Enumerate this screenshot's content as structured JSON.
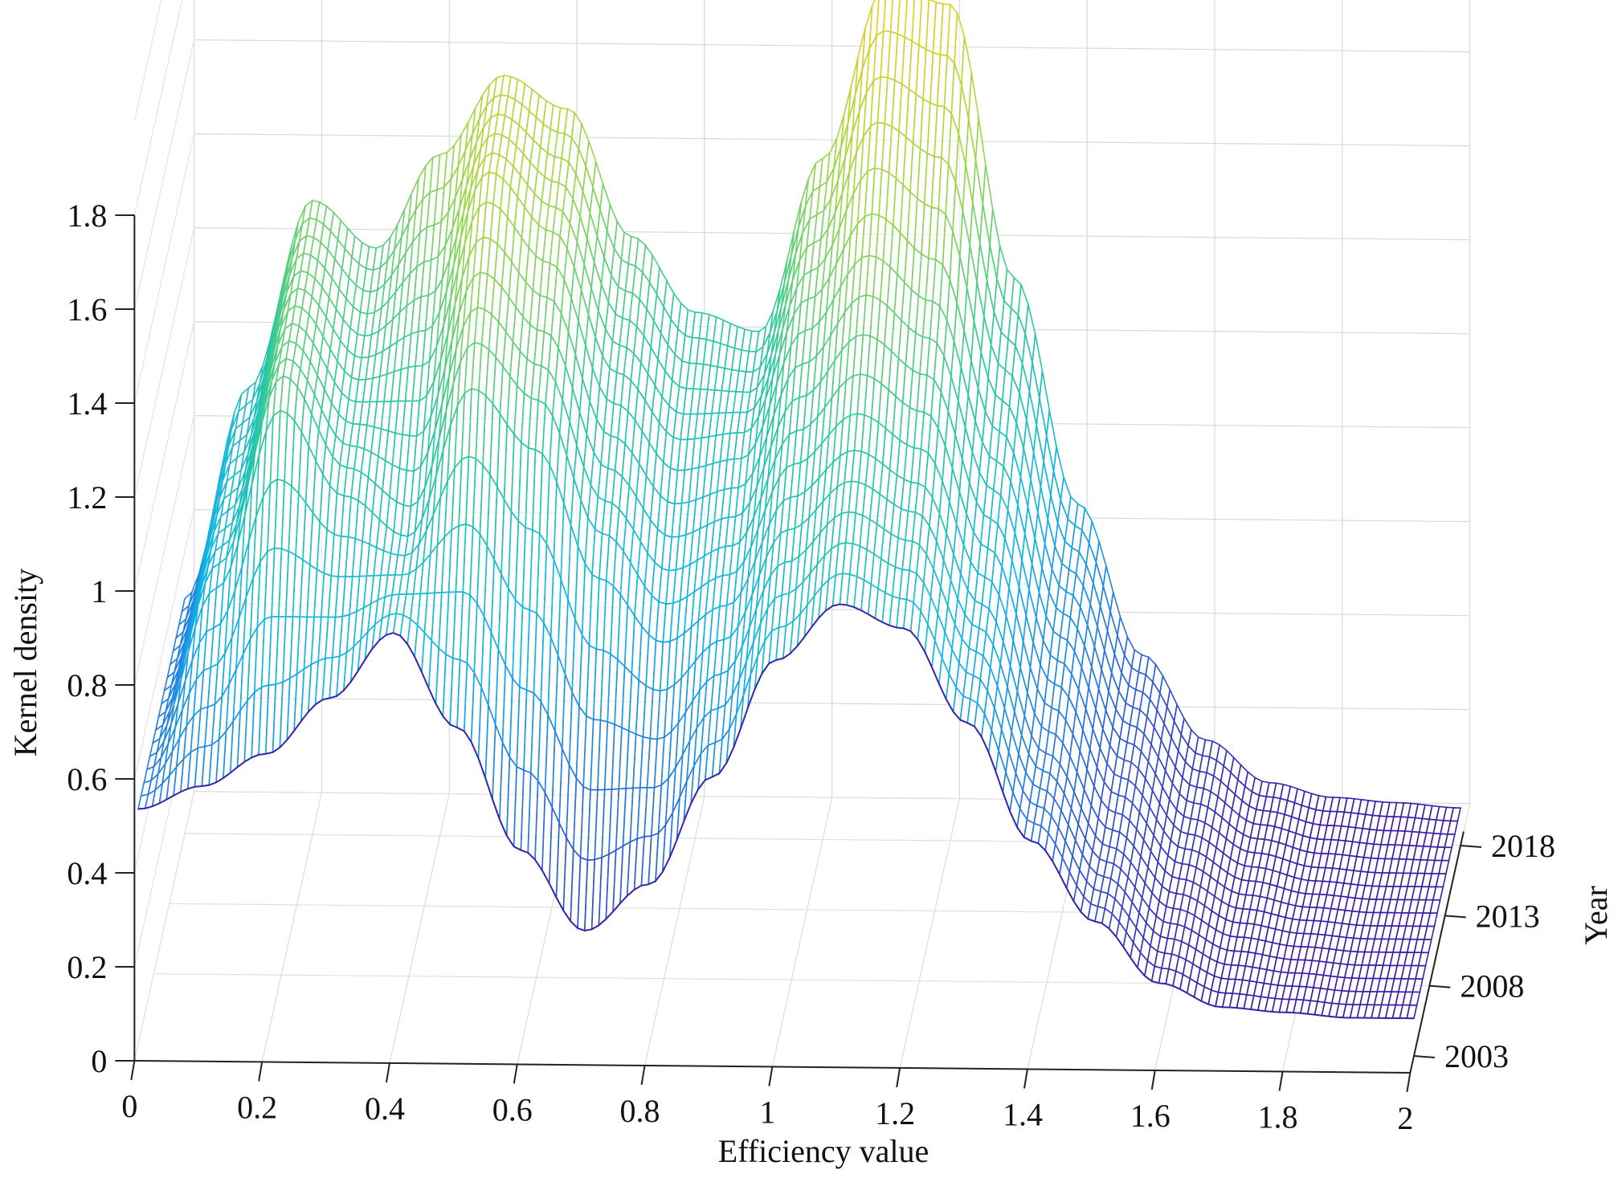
{
  "chart_data": {
    "type": "surface",
    "xlabel": "Efficiency value",
    "ylabel": "Year",
    "zlabel": "Kernel density",
    "xlim": [
      0,
      2
    ],
    "ylim": [
      2003,
      2018
    ],
    "zlim": [
      0,
      1.8
    ],
    "x_ticks": [
      {
        "value": 0,
        "label": "0"
      },
      {
        "value": 0.2,
        "label": "0.2"
      },
      {
        "value": 0.4,
        "label": "0.4"
      },
      {
        "value": 0.6,
        "label": "0.6"
      },
      {
        "value": 0.8,
        "label": "0.8"
      },
      {
        "value": 1,
        "label": "1"
      },
      {
        "value": 1.2,
        "label": "1.2"
      },
      {
        "value": 1.4,
        "label": "1.4"
      },
      {
        "value": 1.6,
        "label": "1.6"
      },
      {
        "value": 1.8,
        "label": "1.8"
      },
      {
        "value": 2,
        "label": "2"
      }
    ],
    "y_ticks": [
      {
        "value": 2003,
        "label": "2003"
      },
      {
        "value": 2008,
        "label": "2008"
      },
      {
        "value": 2013,
        "label": "2013"
      },
      {
        "value": 2018,
        "label": "2018"
      }
    ],
    "z_ticks": [
      {
        "value": 0,
        "label": "0"
      },
      {
        "value": 0.2,
        "label": "0.2"
      },
      {
        "value": 0.4,
        "label": "0.4"
      },
      {
        "value": 0.6,
        "label": "0.6"
      },
      {
        "value": 0.8,
        "label": "0.8"
      },
      {
        "value": 1,
        "label": "1"
      },
      {
        "value": 1.2,
        "label": "1.2"
      },
      {
        "value": 1.4,
        "label": "1.4"
      },
      {
        "value": 1.6,
        "label": "1.6"
      },
      {
        "value": 1.8,
        "label": "1.8"
      }
    ],
    "grid": true,
    "colormap": [
      "#3d1fa8",
      "#2a6fdf",
      "#10b5e6",
      "#2dc9a0",
      "#9ed64a",
      "#e6d020"
    ],
    "series": [
      {
        "year": 2003,
        "x": [
          0,
          0.1,
          0.2,
          0.3,
          0.4,
          0.5,
          0.6,
          0.7,
          0.8,
          0.9,
          1.0,
          1.1,
          1.2,
          1.3,
          1.4,
          1.5,
          1.6,
          1.7,
          1.8,
          1.9,
          2.0
        ],
        "density": [
          0.5,
          0.55,
          0.62,
          0.74,
          0.88,
          0.68,
          0.42,
          0.25,
          0.35,
          0.58,
          0.83,
          0.95,
          0.9,
          0.7,
          0.45,
          0.28,
          0.15,
          0.1,
          0.09,
          0.08,
          0.08
        ]
      },
      {
        "year": 2008,
        "x": [
          0,
          0.1,
          0.2,
          0.3,
          0.4,
          0.5,
          0.6,
          0.7,
          0.8,
          0.9,
          1.0,
          1.1,
          1.2,
          1.3,
          1.4,
          1.5,
          1.6,
          1.7,
          1.8,
          1.9,
          2.0
        ],
        "density": [
          0.5,
          0.85,
          1.25,
          1.05,
          0.95,
          1.3,
          1.18,
          0.9,
          0.75,
          0.82,
          1.05,
          1.15,
          1.08,
          0.82,
          0.5,
          0.3,
          0.17,
          0.11,
          0.09,
          0.08,
          0.08
        ]
      },
      {
        "year": 2013,
        "x": [
          0,
          0.1,
          0.2,
          0.3,
          0.4,
          0.5,
          0.6,
          0.7,
          0.8,
          0.9,
          1.0,
          1.1,
          1.2,
          1.3,
          1.4,
          1.5,
          1.6,
          1.7,
          1.8,
          1.9,
          2.0
        ],
        "density": [
          0.5,
          0.9,
          1.3,
          1.15,
          1.2,
          1.55,
          1.42,
          1.12,
          0.98,
          1.0,
          1.28,
          1.45,
          1.35,
          1.0,
          0.62,
          0.35,
          0.19,
          0.12,
          0.09,
          0.08,
          0.08
        ]
      },
      {
        "year": 2018,
        "x": [
          0,
          0.1,
          0.2,
          0.3,
          0.4,
          0.5,
          0.6,
          0.7,
          0.8,
          0.9,
          1.0,
          1.1,
          1.2,
          1.3,
          1.4,
          1.5,
          1.6,
          1.7,
          1.8,
          1.9,
          2.0
        ],
        "density": [
          0.5,
          0.95,
          1.35,
          1.25,
          1.45,
          1.62,
          1.55,
          1.28,
          1.12,
          1.08,
          1.45,
          1.82,
          1.78,
          1.2,
          0.72,
          0.4,
          0.22,
          0.13,
          0.1,
          0.09,
          0.08
        ]
      }
    ]
  }
}
